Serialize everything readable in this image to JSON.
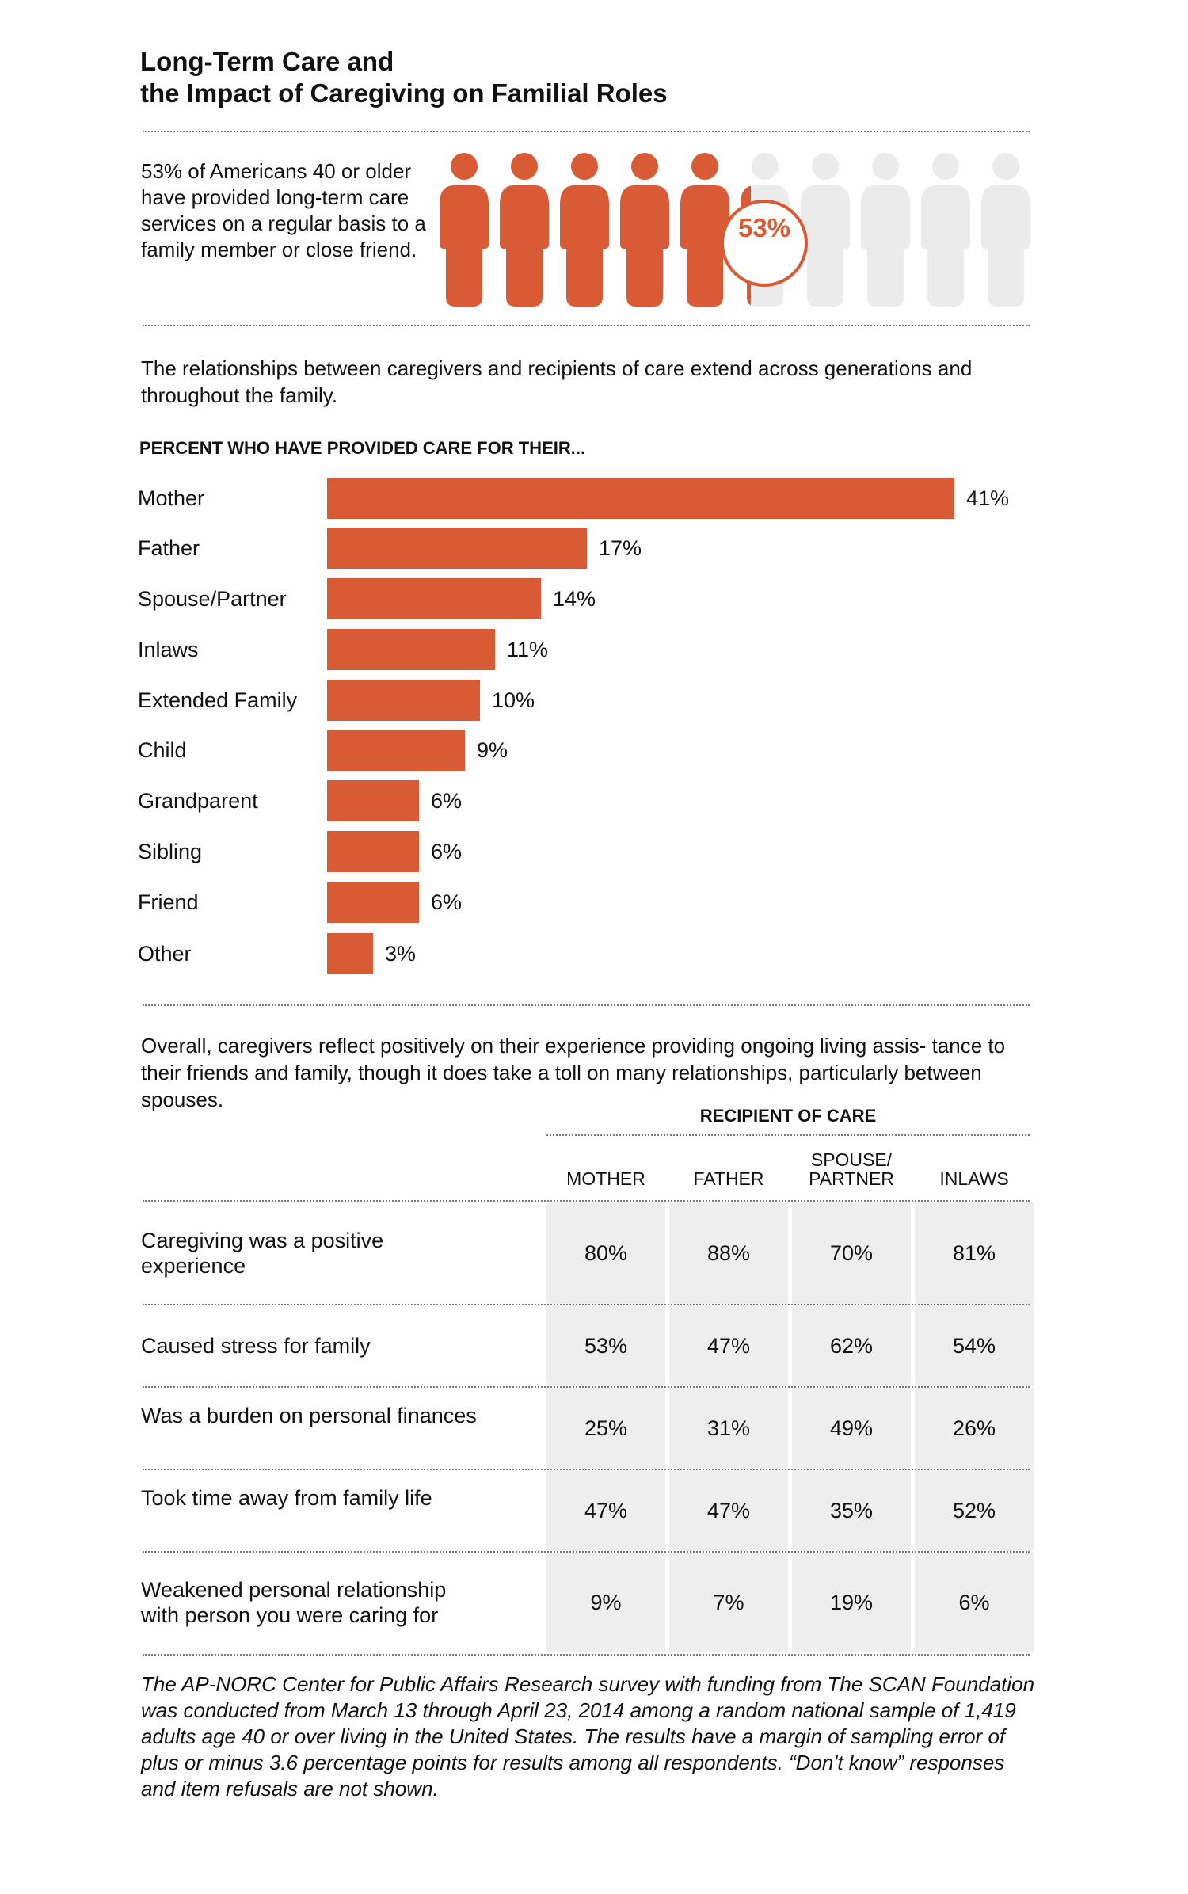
{
  "title_line1": "Long-Term Care and",
  "title_line2": "the Impact of Caregiving on Familial Roles",
  "lead": {
    "text": "53% of Americans 40 or older have provided long-term care services on a regular basis to a family member or close friend.",
    "pct_label": "53%",
    "pct_value": 53,
    "people_total": 10,
    "filled_color": "#d95b35",
    "empty_color": "#ebebeb"
  },
  "intro": "The relationships between caregivers and recipients of care extend across generations and throughout the family.",
  "chart_data": {
    "type": "bar",
    "orientation": "horizontal",
    "title": "PERCENT WHO HAVE PROVIDED CARE FOR THEIR...",
    "categories": [
      "Mother",
      "Father",
      "Spouse/Partner",
      "Inlaws",
      "Extended Family",
      "Child",
      "Grandparent",
      "Sibling",
      "Friend",
      "Other"
    ],
    "values": [
      41,
      17,
      14,
      11,
      10,
      9,
      6,
      6,
      6,
      3
    ],
    "value_labels": [
      "41%",
      "17%",
      "14%",
      "11%",
      "10%",
      "9%",
      "6%",
      "6%",
      "6%",
      "3%"
    ],
    "xlim": [
      0,
      41
    ],
    "grid": false,
    "color": "#d95b35"
  },
  "summary": "Overall, caregivers reflect positively on their experience providing ongoing living assis- tance to their friends and family, though it does take a toll on many relationships, particularly between spouses.",
  "table": {
    "header": "RECIPIENT OF CARE",
    "columns": [
      {
        "line1": "",
        "line2": "MOTHER"
      },
      {
        "line1": "",
        "line2": "FATHER"
      },
      {
        "line1": "SPOUSE/",
        "line2": "PARTNER"
      },
      {
        "line1": "",
        "line2": "INLAWS"
      }
    ],
    "rows": [
      {
        "label": "Caregiving was a positive experience",
        "values": [
          "80%",
          "88%",
          "70%",
          "81%"
        ]
      },
      {
        "label": "Caused stress for family",
        "values": [
          "53%",
          "47%",
          "62%",
          "54%"
        ]
      },
      {
        "label": "Was a burden on personal finances",
        "values": [
          "25%",
          "31%",
          "49%",
          "26%"
        ]
      },
      {
        "label": "Took time away from family life",
        "values": [
          "47%",
          "47%",
          "35%",
          "52%"
        ]
      },
      {
        "label": "Weakened personal relationship with person you were caring for",
        "values": [
          "9%",
          "7%",
          "19%",
          "6%"
        ]
      }
    ]
  },
  "footnote": "The AP-NORC Center for Public Affairs Research survey with funding from The SCAN Foundation was conducted from March 13 through April 23, 2014 among a random national sample of 1,419 adults age 40 or over living in the United States. The results have a margin of sampling error of plus or minus 3.6 percentage points for results among all respondents. “Don't know” responses and item refusals are not shown."
}
